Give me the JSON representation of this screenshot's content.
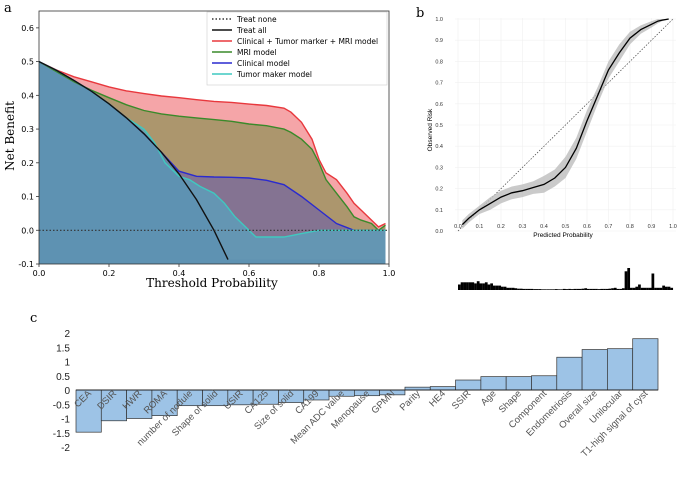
{
  "chart_data": [
    {
      "panel": "a",
      "type": "line",
      "title": "",
      "xlabel": "Threshold Probability",
      "ylabel": "Net Benefit",
      "xlim": [
        0,
        1.0
      ],
      "ylim": [
        -0.1,
        0.65
      ],
      "xticks": [
        "0.0",
        "0.2",
        "0.4",
        "0.6",
        "0.8",
        "1.0"
      ],
      "yticks": [
        "-0.1",
        "0.0",
        "0.1",
        "0.2",
        "0.3",
        "0.4",
        "0.5",
        "0.6"
      ],
      "legend_position": "top-right",
      "series": [
        {
          "name": "Treat none",
          "color": "#333333",
          "style": "dotted",
          "x": [
            0,
            1.0
          ],
          "y": [
            0,
            0
          ]
        },
        {
          "name": "Treat all",
          "color": "#111111",
          "style": "solid",
          "x": [
            0,
            0.05,
            0.1,
            0.15,
            0.2,
            0.25,
            0.3,
            0.35,
            0.4,
            0.45,
            0.5,
            0.54
          ],
          "y": [
            0.5,
            0.474,
            0.444,
            0.412,
            0.375,
            0.333,
            0.286,
            0.231,
            0.167,
            0.091,
            0.0,
            -0.087
          ]
        },
        {
          "name": "Clinical + Tumor marker + MRI model",
          "color": "#e8383d",
          "style": "solid",
          "x": [
            0,
            0.05,
            0.1,
            0.15,
            0.2,
            0.25,
            0.3,
            0.35,
            0.4,
            0.45,
            0.5,
            0.55,
            0.6,
            0.65,
            0.7,
            0.72,
            0.75,
            0.78,
            0.8,
            0.82,
            0.85,
            0.88,
            0.9,
            0.92,
            0.95,
            0.97,
            0.99
          ],
          "y": [
            0.5,
            0.475,
            0.455,
            0.44,
            0.425,
            0.413,
            0.405,
            0.398,
            0.393,
            0.387,
            0.382,
            0.379,
            0.374,
            0.37,
            0.362,
            0.35,
            0.32,
            0.27,
            0.21,
            0.17,
            0.15,
            0.11,
            0.08,
            0.06,
            0.03,
            0.01,
            0.02
          ]
        },
        {
          "name": "MRI model",
          "color": "#3a8a2a",
          "style": "solid",
          "x": [
            0,
            0.05,
            0.1,
            0.15,
            0.2,
            0.25,
            0.3,
            0.35,
            0.4,
            0.45,
            0.5,
            0.55,
            0.6,
            0.65,
            0.7,
            0.72,
            0.75,
            0.78,
            0.8,
            0.82,
            0.85,
            0.88,
            0.9,
            0.92,
            0.95,
            0.97,
            0.99
          ],
          "y": [
            0.5,
            0.47,
            0.44,
            0.415,
            0.393,
            0.372,
            0.355,
            0.345,
            0.338,
            0.333,
            0.328,
            0.323,
            0.315,
            0.31,
            0.3,
            0.29,
            0.27,
            0.24,
            0.2,
            0.15,
            0.11,
            0.07,
            0.04,
            0.03,
            0.02,
            0.0,
            0.015
          ]
        },
        {
          "name": "Clinical model",
          "color": "#2a2acf",
          "style": "solid",
          "x": [
            0,
            0.05,
            0.1,
            0.15,
            0.2,
            0.25,
            0.3,
            0.35,
            0.4,
            0.45,
            0.5,
            0.55,
            0.6,
            0.65,
            0.7,
            0.75,
            0.8,
            0.85,
            0.9,
            0.95,
            0.99
          ],
          "y": [
            0.5,
            0.474,
            0.444,
            0.412,
            0.375,
            0.333,
            0.286,
            0.231,
            0.175,
            0.16,
            0.158,
            0.157,
            0.155,
            0.148,
            0.135,
            0.1,
            0.06,
            0.02,
            0.0,
            0.0,
            0.0
          ]
        },
        {
          "name": "Tumor maker model",
          "color": "#3fc9c0",
          "style": "solid",
          "x": [
            0,
            0.05,
            0.1,
            0.15,
            0.2,
            0.25,
            0.3,
            0.33,
            0.36,
            0.4,
            0.43,
            0.46,
            0.5,
            0.53,
            0.56,
            0.6,
            0.62,
            0.65,
            0.7,
            0.75,
            0.8,
            0.85,
            0.9,
            0.95,
            0.99
          ],
          "y": [
            0.5,
            0.474,
            0.444,
            0.412,
            0.375,
            0.333,
            0.3,
            0.26,
            0.2,
            0.16,
            0.15,
            0.13,
            0.11,
            0.08,
            0.04,
            0.0,
            -0.02,
            -0.02,
            -0.02,
            -0.01,
            0.0,
            0.0,
            0.0,
            0.0,
            0.0
          ]
        }
      ]
    },
    {
      "panel": "b",
      "type": "line",
      "title": "",
      "xlabel": "Predicted Probability",
      "ylabel": "Observed Risk",
      "xlim": [
        0,
        1.0
      ],
      "ylim": [
        0,
        1.0
      ],
      "xticks": [
        "0.0",
        "0.1",
        "0.2",
        "0.3",
        "0.4",
        "0.5",
        "0.6",
        "0.7",
        "0.8",
        "0.9",
        "1.0"
      ],
      "yticks": [
        "0.0",
        "0.1",
        "0.2",
        "0.3",
        "0.4",
        "0.5",
        "0.6",
        "0.7",
        "0.8",
        "0.9",
        "1.0"
      ],
      "series": [
        {
          "name": "Ideal",
          "style": "dotted",
          "x": [
            0,
            1.0
          ],
          "y": [
            0,
            1.0
          ]
        },
        {
          "name": "Calibration",
          "x": [
            0.02,
            0.05,
            0.1,
            0.15,
            0.2,
            0.25,
            0.3,
            0.35,
            0.4,
            0.45,
            0.5,
            0.55,
            0.6,
            0.65,
            0.7,
            0.75,
            0.8,
            0.85,
            0.9,
            0.93,
            0.95,
            0.98
          ],
          "y": [
            0.03,
            0.06,
            0.1,
            0.13,
            0.16,
            0.18,
            0.19,
            0.205,
            0.22,
            0.25,
            0.3,
            0.39,
            0.52,
            0.64,
            0.76,
            0.84,
            0.91,
            0.95,
            0.975,
            0.99,
            0.995,
            1.0
          ],
          "band": [
            0.02,
            0.02,
            0.02,
            0.03,
            0.03,
            0.03,
            0.03,
            0.03,
            0.04,
            0.04,
            0.05,
            0.05,
            0.05,
            0.04,
            0.04,
            0.04,
            0.03,
            0.02,
            0.015,
            0.01,
            0.005,
            0.003
          ]
        },
        {
          "name": "Histogram",
          "values": [
            0.25,
            0.35,
            0.35,
            0.35,
            0.35,
            0.35,
            0.3,
            0.4,
            0.3,
            0.3,
            0.35,
            0.25,
            0.3,
            0.2,
            0.2,
            0.2,
            0.15,
            0.15,
            0.1,
            0.1,
            0.1,
            0.08,
            0.06,
            0.06,
            0.05,
            0.05,
            0.05,
            0.05,
            0.04,
            0.04,
            0.04,
            0.03,
            0.03,
            0.03,
            0.03,
            0.03,
            0.04,
            0.03,
            0.03,
            0.05,
            0.04,
            0.05,
            0.04,
            0.05,
            0.05,
            0.05,
            0.06,
            0.08,
            0.05,
            0.05,
            0.05,
            0.05,
            0.04,
            0.05,
            0.05,
            0.05,
            0.06,
            0.08,
            0.1,
            0.05,
            0.05,
            0.08,
            0.85,
            1.0,
            0.1,
            0.1,
            0.15,
            0.25,
            0.1,
            0.1,
            0.1,
            0.1,
            0.75,
            0.1,
            0.1,
            0.1,
            0.2,
            0.15,
            0.15,
            0.1
          ]
        }
      ]
    },
    {
      "panel": "c",
      "type": "bar",
      "title": "",
      "xlabel": "",
      "ylabel": "",
      "ylim": [
        -2,
        2
      ],
      "yticks": [
        "2",
        "1.5",
        "1",
        "0.5",
        "0",
        "-0.5",
        "-1",
        "-1.5",
        "-2"
      ],
      "bar_color": "#9dc3e6",
      "categories": [
        "CEA",
        "DSIR",
        "HWR",
        "ROMA",
        "number of nodule",
        "Shape of solid",
        "USIR",
        "CA125",
        "Size of solid",
        "CA199",
        "Mean ADC value",
        "Menopause",
        "GPMN",
        "Parity",
        "HE4",
        "SSIR",
        "Age",
        "Shape",
        "Component",
        "Endometriosis",
        "Overall size",
        "Unilocular",
        "T1-high signal of cyst"
      ],
      "values": [
        -1.48,
        -1.08,
        -1.0,
        -0.9,
        -0.55,
        -0.55,
        -0.52,
        -0.5,
        -0.44,
        -0.35,
        -0.22,
        -0.2,
        -0.17,
        0.1,
        0.12,
        0.35,
        0.47,
        0.47,
        0.5,
        1.15,
        1.42,
        1.45,
        1.8
      ]
    }
  ],
  "panel_labels": {
    "a": "a",
    "b": "b",
    "c": "c"
  }
}
